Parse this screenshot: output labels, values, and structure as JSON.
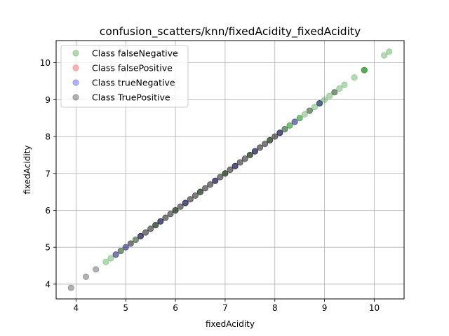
{
  "chart_data": {
    "type": "scatter",
    "title": "confusion_scatters/knn/fixedAcidity_fixedAcidity",
    "xlabel": "fixedAcidity",
    "ylabel": "fixedAcidity",
    "xlim": [
      3.6,
      10.6
    ],
    "ylim": [
      3.6,
      10.6
    ],
    "xticks": [
      4,
      5,
      6,
      7,
      8,
      9,
      10
    ],
    "yticks": [
      4,
      5,
      6,
      7,
      8,
      9,
      10
    ],
    "grid": true,
    "legend_position": "top-left",
    "series": [
      {
        "name": "Class falseNegative",
        "color": "#008000",
        "alpha": 0.3,
        "points": [
          [
            4.6,
            4.6
          ],
          [
            4.7,
            4.7
          ],
          [
            4.9,
            4.9
          ],
          [
            5.2,
            5.2
          ],
          [
            5.6,
            5.6
          ],
          [
            6.0,
            6.0
          ],
          [
            6.5,
            6.5
          ],
          [
            7.0,
            7.0
          ],
          [
            7.5,
            7.5
          ],
          [
            7.9,
            7.9
          ],
          [
            8.2,
            8.2
          ],
          [
            8.3,
            8.3
          ],
          [
            8.3,
            8.3
          ],
          [
            8.5,
            8.5
          ],
          [
            8.5,
            8.5
          ],
          [
            8.6,
            8.6
          ],
          [
            8.7,
            8.7
          ],
          [
            8.8,
            8.8
          ],
          [
            8.9,
            8.9
          ],
          [
            9.0,
            9.0
          ],
          [
            9.1,
            9.1
          ],
          [
            9.2,
            9.2
          ],
          [
            9.3,
            9.3
          ],
          [
            9.4,
            9.4
          ],
          [
            9.6,
            9.6
          ],
          [
            9.8,
            9.8
          ],
          [
            9.8,
            9.8
          ],
          [
            9.8,
            9.8
          ],
          [
            10.2,
            10.2
          ],
          [
            10.3,
            10.3
          ]
        ]
      },
      {
        "name": "Class falsePositive",
        "color": "#ff0000",
        "alpha": 0.3,
        "points": []
      },
      {
        "name": "Class trueNegative",
        "color": "#0000ff",
        "alpha": 0.3,
        "points": [
          [
            4.8,
            4.8
          ],
          [
            5.0,
            5.0
          ],
          [
            5.3,
            5.3
          ],
          [
            5.7,
            5.7
          ],
          [
            6.2,
            6.2
          ],
          [
            6.8,
            6.8
          ],
          [
            7.2,
            7.2
          ],
          [
            7.6,
            7.6
          ],
          [
            8.1,
            8.1
          ],
          [
            8.4,
            8.4
          ],
          [
            8.9,
            8.9
          ]
        ]
      },
      {
        "name": "Class TruePositive",
        "color": "#000000",
        "alpha": 0.3,
        "points": [
          [
            3.9,
            3.9
          ],
          [
            4.2,
            4.2
          ],
          [
            4.4,
            4.4
          ],
          [
            4.8,
            4.8
          ],
          [
            4.9,
            4.9
          ],
          [
            5.0,
            5.0
          ],
          [
            5.1,
            5.1
          ],
          [
            5.1,
            5.1
          ],
          [
            5.2,
            5.2
          ],
          [
            5.3,
            5.3
          ],
          [
            5.3,
            5.3
          ],
          [
            5.4,
            5.4
          ],
          [
            5.4,
            5.4
          ],
          [
            5.5,
            5.5
          ],
          [
            5.5,
            5.5
          ],
          [
            5.6,
            5.6
          ],
          [
            5.6,
            5.6
          ],
          [
            5.7,
            5.7
          ],
          [
            5.7,
            5.7
          ],
          [
            5.8,
            5.8
          ],
          [
            5.8,
            5.8
          ],
          [
            5.9,
            5.9
          ],
          [
            5.9,
            5.9
          ],
          [
            6.0,
            6.0
          ],
          [
            6.0,
            6.0
          ],
          [
            6.1,
            6.1
          ],
          [
            6.1,
            6.1
          ],
          [
            6.2,
            6.2
          ],
          [
            6.2,
            6.2
          ],
          [
            6.3,
            6.3
          ],
          [
            6.3,
            6.3
          ],
          [
            6.4,
            6.4
          ],
          [
            6.4,
            6.4
          ],
          [
            6.5,
            6.5
          ],
          [
            6.5,
            6.5
          ],
          [
            6.6,
            6.6
          ],
          [
            6.6,
            6.6
          ],
          [
            6.7,
            6.7
          ],
          [
            6.7,
            6.7
          ],
          [
            6.8,
            6.8
          ],
          [
            6.8,
            6.8
          ],
          [
            6.9,
            6.9
          ],
          [
            6.9,
            6.9
          ],
          [
            7.0,
            7.0
          ],
          [
            7.0,
            7.0
          ],
          [
            7.1,
            7.1
          ],
          [
            7.1,
            7.1
          ],
          [
            7.2,
            7.2
          ],
          [
            7.2,
            7.2
          ],
          [
            7.3,
            7.3
          ],
          [
            7.3,
            7.3
          ],
          [
            7.4,
            7.4
          ],
          [
            7.4,
            7.4
          ],
          [
            7.5,
            7.5
          ],
          [
            7.5,
            7.5
          ],
          [
            7.6,
            7.6
          ],
          [
            7.6,
            7.6
          ],
          [
            7.7,
            7.7
          ],
          [
            7.7,
            7.7
          ],
          [
            7.8,
            7.8
          ],
          [
            7.8,
            7.8
          ],
          [
            7.9,
            7.9
          ],
          [
            7.9,
            7.9
          ],
          [
            8.0,
            8.0
          ],
          [
            8.0,
            8.0
          ],
          [
            8.1,
            8.1
          ],
          [
            8.1,
            8.1
          ],
          [
            8.2,
            8.2
          ],
          [
            8.4,
            8.4
          ],
          [
            8.7,
            8.7
          ],
          [
            8.9,
            8.9
          ],
          [
            9.2,
            9.2
          ]
        ]
      }
    ]
  }
}
